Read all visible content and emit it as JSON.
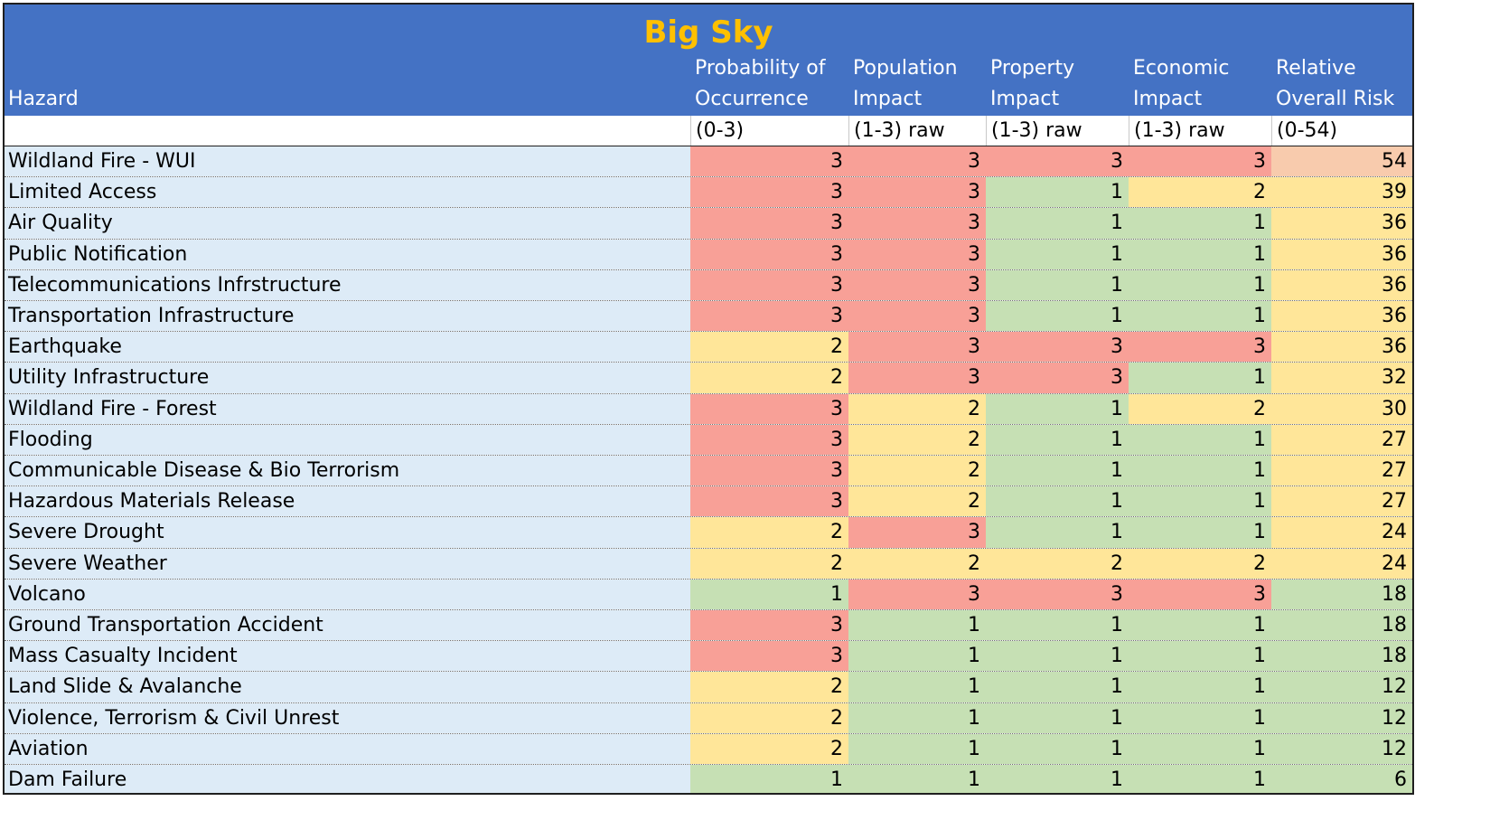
{
  "chart_data": {
    "type": "table",
    "title": "Big Sky",
    "columns": [
      {
        "header": [
          "",
          "Hazard"
        ],
        "unit": ""
      },
      {
        "header": [
          "Probability of",
          "Occurrence"
        ],
        "unit": "(0-3)"
      },
      {
        "header": [
          "Population",
          "Impact"
        ],
        "unit": "(1-3) raw"
      },
      {
        "header": [
          "Property",
          "Impact"
        ],
        "unit": "(1-3) raw"
      },
      {
        "header": [
          "Economic",
          "Impact"
        ],
        "unit": "(1-3) raw"
      },
      {
        "header": [
          "Relative",
          "Overall Risk"
        ],
        "unit": "(0-54)"
      }
    ],
    "rows": [
      {
        "hazard": "Wildland Fire - WUI",
        "values": [
          3,
          3,
          3,
          3,
          54
        ]
      },
      {
        "hazard": "Limited Access",
        "values": [
          3,
          3,
          1,
          2,
          39
        ]
      },
      {
        "hazard": "Air Quality",
        "values": [
          3,
          3,
          1,
          1,
          36
        ]
      },
      {
        "hazard": "Public Notification",
        "values": [
          3,
          3,
          1,
          1,
          36
        ]
      },
      {
        "hazard": "Telecommunications Infrstructure",
        "values": [
          3,
          3,
          1,
          1,
          36
        ]
      },
      {
        "hazard": "Transportation Infrastructure",
        "values": [
          3,
          3,
          1,
          1,
          36
        ]
      },
      {
        "hazard": "Earthquake",
        "values": [
          2,
          3,
          3,
          3,
          36
        ]
      },
      {
        "hazard": "Utility Infrastructure",
        "values": [
          2,
          3,
          3,
          1,
          32
        ]
      },
      {
        "hazard": "Wildland Fire - Forest",
        "values": [
          3,
          2,
          1,
          2,
          30
        ]
      },
      {
        "hazard": "Flooding",
        "values": [
          3,
          2,
          1,
          1,
          27
        ]
      },
      {
        "hazard": "Communicable Disease & Bio Terrorism",
        "values": [
          3,
          2,
          1,
          1,
          27
        ]
      },
      {
        "hazard": "Hazardous Materials Release",
        "values": [
          3,
          2,
          1,
          1,
          27
        ]
      },
      {
        "hazard": "Severe Drought",
        "values": [
          2,
          3,
          1,
          1,
          24
        ]
      },
      {
        "hazard": "Severe Weather",
        "values": [
          2,
          2,
          2,
          2,
          24
        ]
      },
      {
        "hazard": "Volcano",
        "values": [
          1,
          3,
          3,
          3,
          18
        ]
      },
      {
        "hazard": "Ground Transportation Accident",
        "values": [
          3,
          1,
          1,
          1,
          18
        ]
      },
      {
        "hazard": "Mass Casualty Incident",
        "values": [
          3,
          1,
          1,
          1,
          18
        ]
      },
      {
        "hazard": "Land Slide & Avalanche",
        "values": [
          2,
          1,
          1,
          1,
          12
        ]
      },
      {
        "hazard": "Violence, Terrorism & Civil Unrest",
        "values": [
          2,
          1,
          1,
          1,
          12
        ]
      },
      {
        "hazard": "Aviation",
        "values": [
          2,
          1,
          1,
          1,
          12
        ]
      },
      {
        "hazard": "Dam Failure",
        "values": [
          1,
          1,
          1,
          1,
          6
        ]
      }
    ],
    "colors": {
      "header_bg": "#4472c4",
      "title": "#ffc000",
      "hazard_bg": "#ddebf7",
      "high": "#f8a097",
      "medium": "#ffe699",
      "low": "#c6e0b4",
      "max_risk": "#f8cbad"
    }
  }
}
